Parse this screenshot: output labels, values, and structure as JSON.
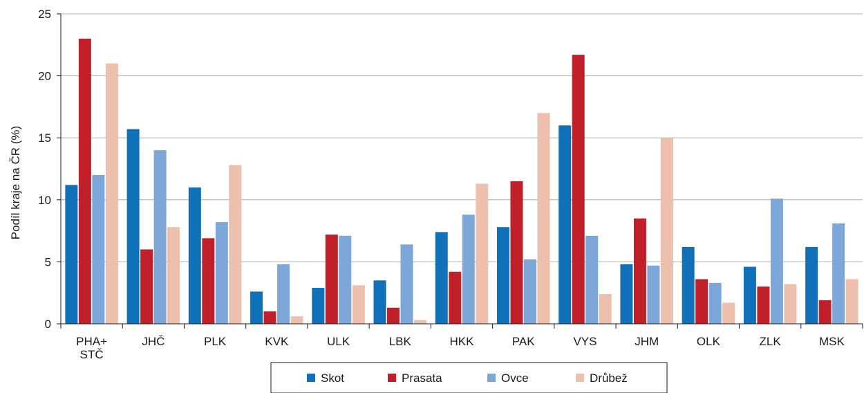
{
  "chart_data": {
    "type": "bar",
    "title": "",
    "xlabel": "",
    "ylabel": "Podíl kraje na ČR (%)",
    "ylim": [
      0,
      25
    ],
    "yticks": [
      0,
      5,
      10,
      15,
      20,
      25
    ],
    "categories": [
      [
        "PHA+",
        "STČ"
      ],
      [
        "JHČ"
      ],
      [
        "PLK"
      ],
      [
        "KVK"
      ],
      [
        "ULK"
      ],
      [
        "LBK"
      ],
      [
        "HKK"
      ],
      [
        "PAK"
      ],
      [
        "VYS"
      ],
      [
        "JHM"
      ],
      [
        "OLK"
      ],
      [
        "ZLK"
      ],
      [
        "MSK"
      ]
    ],
    "series": [
      {
        "name": "Skot",
        "color": "#1070b8",
        "values": [
          11.2,
          15.7,
          11.0,
          2.6,
          2.9,
          3.5,
          7.4,
          7.8,
          16.0,
          4.8,
          6.2,
          4.6,
          6.2
        ]
      },
      {
        "name": "Prasata",
        "color": "#c0202a",
        "values": [
          23.0,
          6.0,
          6.9,
          1.0,
          7.2,
          1.3,
          4.2,
          11.5,
          21.7,
          8.5,
          3.6,
          3.0,
          1.9
        ]
      },
      {
        "name": "Ovce",
        "color": "#7da7d9",
        "values": [
          12.0,
          14.0,
          8.2,
          4.8,
          7.1,
          6.4,
          8.8,
          5.2,
          7.1,
          4.7,
          3.3,
          10.1,
          8.1
        ]
      },
      {
        "name": "Drůbež",
        "color": "#edbfad",
        "values": [
          21.0,
          7.8,
          12.8,
          0.6,
          3.1,
          0.3,
          11.3,
          17.0,
          2.4,
          15.0,
          1.7,
          3.2,
          3.6
        ]
      }
    ],
    "grid": true,
    "legend_position": "bottom"
  }
}
